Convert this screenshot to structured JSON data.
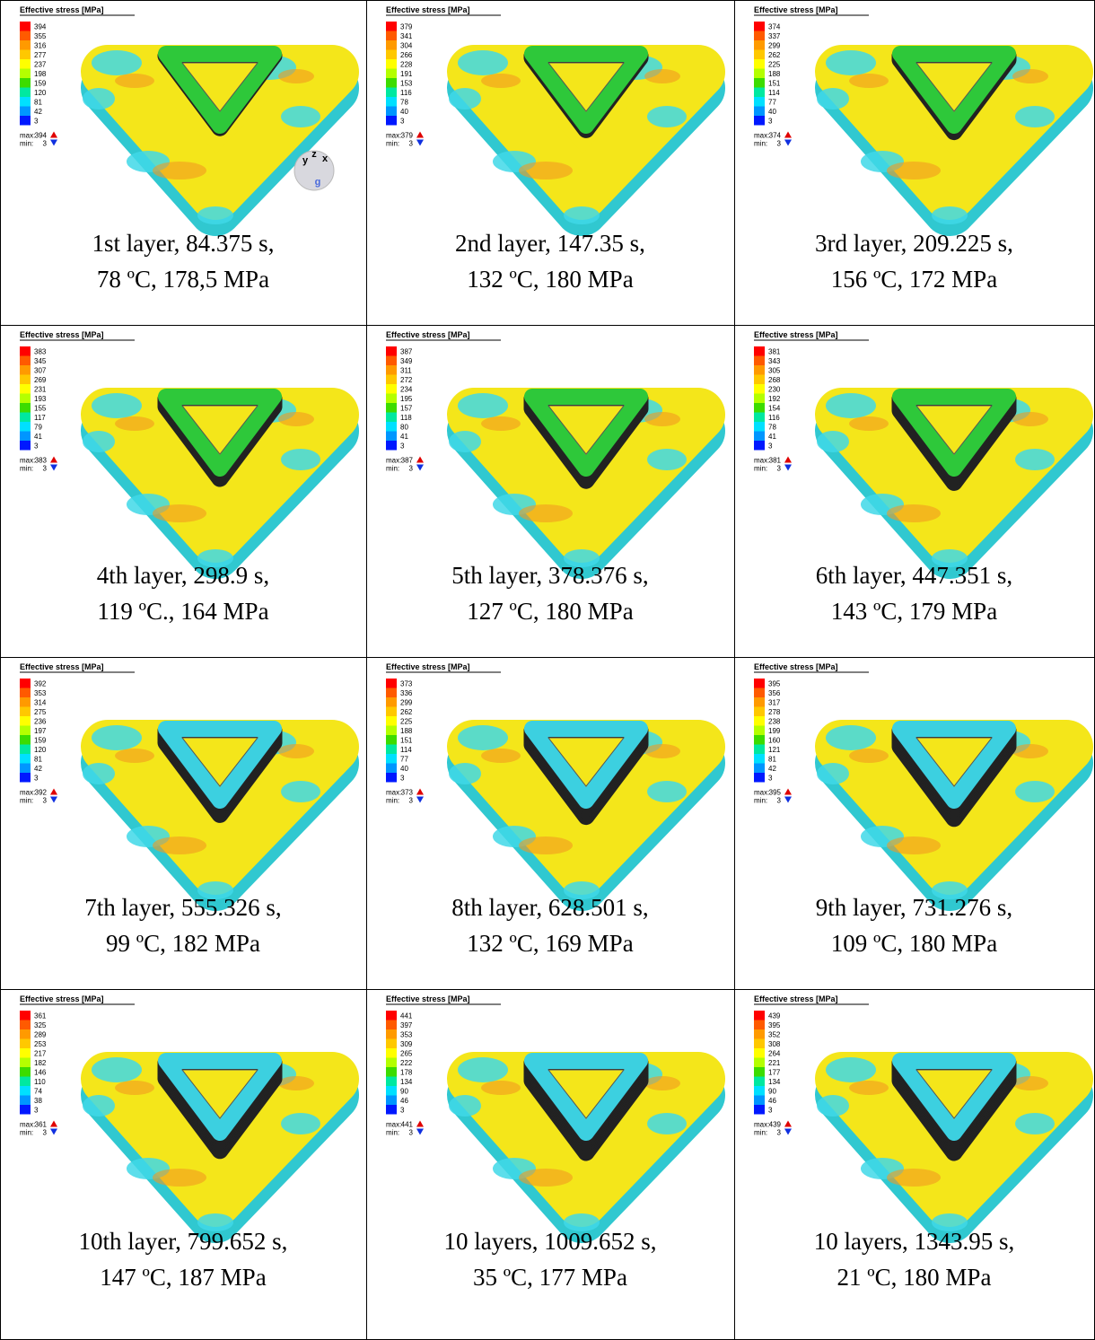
{
  "figure": {
    "axis_triad": [
      "y",
      "z",
      "x",
      "g"
    ],
    "panels": [
      {
        "legend": {
          "title": "Effective stress [MPa]",
          "levels": [
            394,
            355,
            316,
            277,
            237,
            198,
            159,
            120,
            81,
            42,
            3
          ],
          "max_label": "max:",
          "max": 394,
          "min_label": "min:",
          "min": 3
        },
        "caption": [
          "1st layer, 84.375 s,",
          "78 ºC, 178,5 MPa"
        ]
      },
      {
        "legend": {
          "title": "Effective stress [MPa]",
          "levels": [
            379,
            341,
            304,
            266,
            228,
            191,
            153,
            116,
            78,
            40,
            3
          ],
          "max_label": "max:",
          "max": 379,
          "min_label": "min:",
          "min": 3
        },
        "caption": [
          "2nd layer, 147.35 s,",
          "132 ºC, 180 MPa"
        ]
      },
      {
        "legend": {
          "title": "Effective stress [MPa]",
          "levels": [
            374,
            337,
            299,
            262,
            225,
            188,
            151,
            114,
            77,
            40,
            3
          ],
          "max_label": "max:",
          "max": 374,
          "min_label": "min:",
          "min": 3
        },
        "caption": [
          "3rd layer, 209.225 s,",
          "156 ºC, 172 MPa"
        ]
      },
      {
        "legend": {
          "title": "Effective stress [MPa]",
          "levels": [
            383,
            345,
            307,
            269,
            231,
            193,
            155,
            117,
            79,
            41,
            3
          ],
          "max_label": "max:",
          "max": 383,
          "min_label": "min:",
          "min": 3
        },
        "caption": [
          "4th layer, 298.9 s,",
          "119 ºC., 164 MPa"
        ]
      },
      {
        "legend": {
          "title": "Effective stress [MPa]",
          "levels": [
            387,
            349,
            311,
            272,
            234,
            195,
            157,
            118,
            80,
            41,
            3
          ],
          "max_label": "max:",
          "max": 387,
          "min_label": "min:",
          "min": 3
        },
        "caption": [
          "5th layer, 378.376 s,",
          "127 ºC, 180 MPa"
        ]
      },
      {
        "legend": {
          "title": "Effective stress [MPa]",
          "levels": [
            381,
            343,
            305,
            268,
            230,
            192,
            154,
            116,
            78,
            41,
            3
          ],
          "max_label": "max:",
          "max": 381,
          "min_label": "min:",
          "min": 3
        },
        "caption": [
          "6th layer, 447.351 s,",
          "143 ºC, 179 MPa"
        ]
      },
      {
        "legend": {
          "title": "Effective stress [MPa]",
          "levels": [
            392,
            353,
            314,
            275,
            236,
            197,
            159,
            120,
            81,
            42,
            3
          ],
          "max_label": "max:",
          "max": 392,
          "min_label": "min:",
          "min": 3
        },
        "caption": [
          "7th layer, 555.326 s,",
          "99 ºC, 182 MPa"
        ]
      },
      {
        "legend": {
          "title": "Effective stress [MPa]",
          "levels": [
            373,
            336,
            299,
            262,
            225,
            188,
            151,
            114,
            77,
            40,
            3
          ],
          "max_label": "max:",
          "max": 373,
          "min_label": "min:",
          "min": 3
        },
        "caption": [
          "8th layer, 628.501 s,",
          "132 ºC, 169 MPa"
        ]
      },
      {
        "legend": {
          "title": "Effective stress [MPa]",
          "levels": [
            395,
            356,
            317,
            278,
            238,
            199,
            160,
            121,
            81,
            42,
            3
          ],
          "max_label": "max:",
          "max": 395,
          "min_label": "min:",
          "min": 3
        },
        "caption": [
          "9th layer, 731.276 s,",
          "109 ºC, 180 MPa"
        ]
      },
      {
        "legend": {
          "title": "Effective stress [MPa]",
          "levels": [
            361,
            325,
            289,
            253,
            217,
            182,
            146,
            110,
            74,
            38,
            3
          ],
          "max_label": "max:",
          "max": 361,
          "min_label": "min:",
          "min": 3
        },
        "caption": [
          "10th layer, 799.652 s,",
          "147 ºC, 187 MPa"
        ]
      },
      {
        "legend": {
          "title": "Effective stress [MPa]",
          "levels": [
            441,
            397,
            353,
            309,
            265,
            222,
            178,
            134,
            90,
            46,
            3
          ],
          "max_label": "max:",
          "max": 441,
          "min_label": "min:",
          "min": 3
        },
        "caption": [
          "10 layers, 1009.652 s,",
          "35 ºC, 177 MPa"
        ]
      },
      {
        "legend": {
          "title": "Effective stress [MPa]",
          "levels": [
            439,
            395,
            352,
            308,
            264,
            221,
            177,
            134,
            90,
            46,
            3
          ],
          "max_label": "max:",
          "max": 439,
          "min_label": "min:",
          "min": 3
        },
        "caption": [
          "10 layers, 1343.95 s,",
          "21 ºC, 180 MPa"
        ]
      }
    ]
  }
}
